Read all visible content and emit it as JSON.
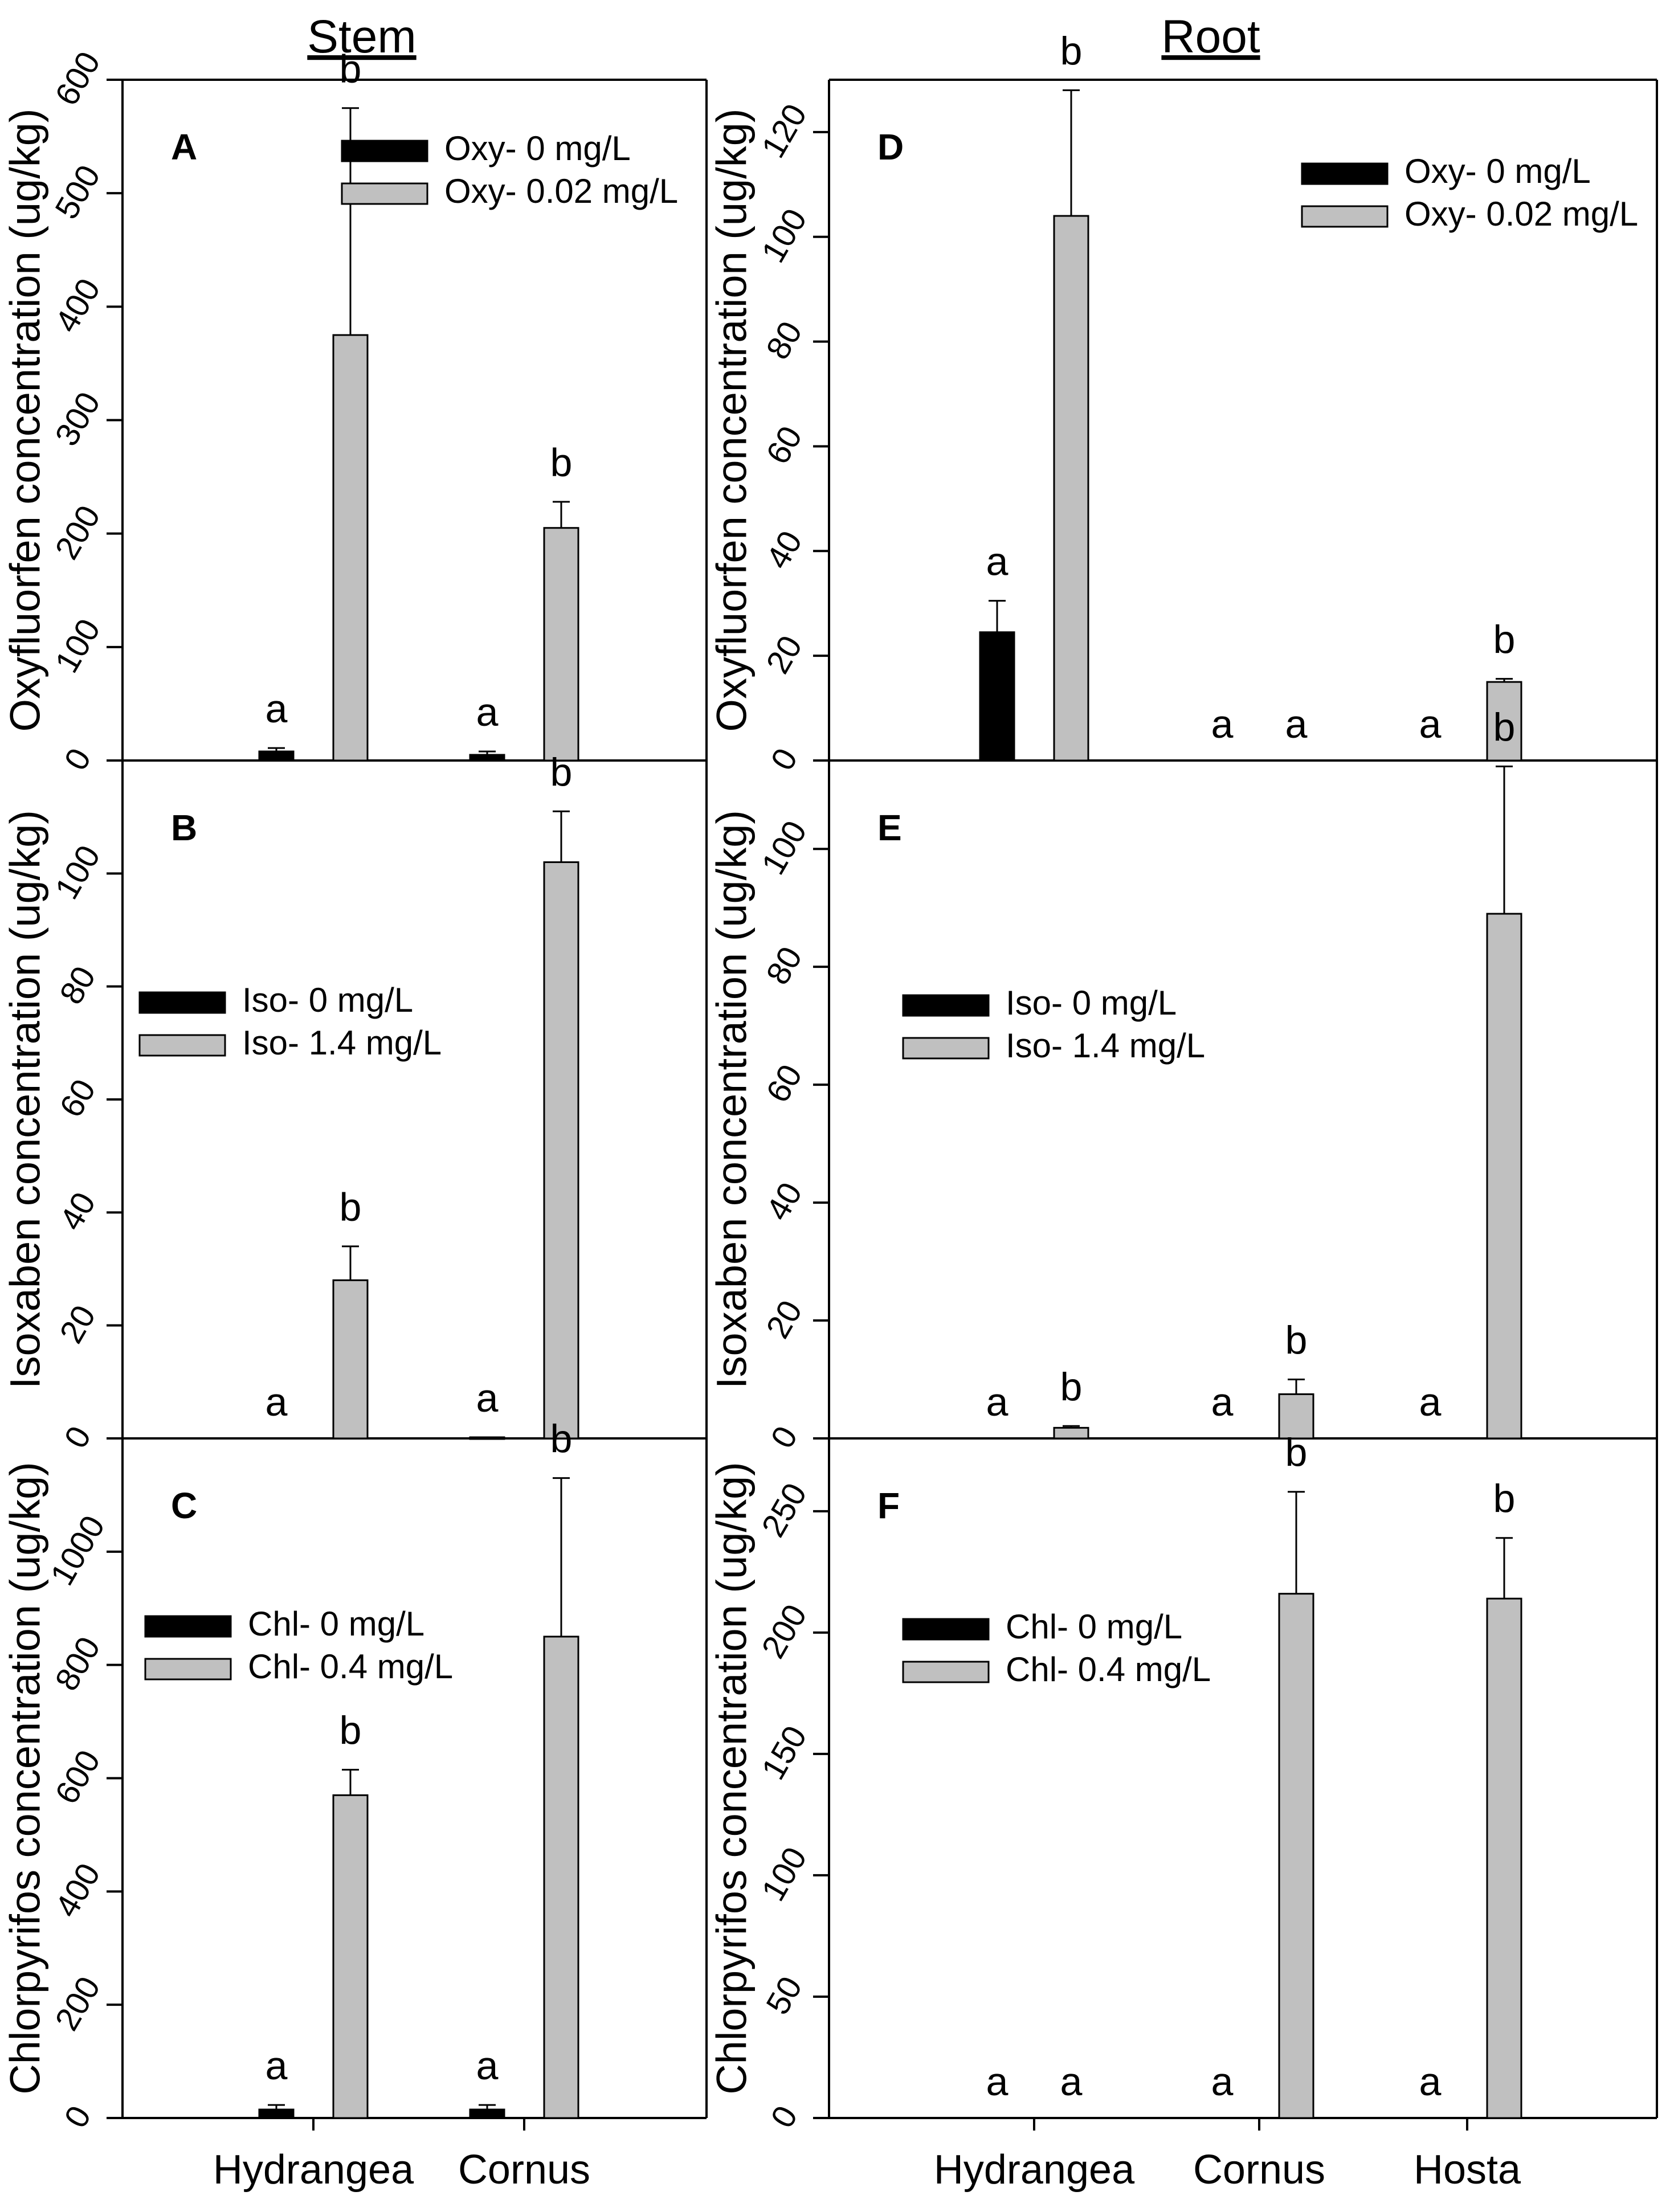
{
  "section_titles": {
    "stem": "Stem",
    "root": "Root"
  },
  "colors": {
    "control_bar": "#000000",
    "treated_bar": "#c0c0c0",
    "axis": "#000000",
    "background": "#ffffff"
  },
  "chart_data": [
    {
      "id": "A",
      "type": "bar",
      "panel_label": "A",
      "column": "stem",
      "ylabel": "Oxyfluorfen concentration (ug/kg)",
      "ylim": [
        0,
        600
      ],
      "yticks": [
        0,
        100,
        200,
        300,
        400,
        500,
        600
      ],
      "categories": [
        "Hydrangea",
        "Cornus"
      ],
      "show_categories": false,
      "frame": "left-top-right",
      "legend_position": "top-right",
      "series": [
        {
          "name": "Oxy- 0 mg/L",
          "color": "#000000",
          "values": [
            8,
            5
          ],
          "errors": [
            3,
            3
          ],
          "letters": [
            "a",
            "a"
          ]
        },
        {
          "name": "Oxy- 0.02 mg/L",
          "color": "#c0c0c0",
          "values": [
            375,
            205
          ],
          "errors": [
            200,
            23
          ],
          "letters": [
            "b",
            "b"
          ]
        }
      ]
    },
    {
      "id": "B",
      "type": "bar",
      "panel_label": "B",
      "column": "stem",
      "ylabel": "Isoxaben concentration (ug/kg)",
      "ylim": [
        0,
        120
      ],
      "yticks": [
        0,
        20,
        40,
        60,
        80,
        100
      ],
      "categories": [
        "Hydrangea",
        "Cornus"
      ],
      "show_categories": false,
      "frame": "left-right",
      "legend_position": "middle-left",
      "series": [
        {
          "name": "Iso- 0 mg/L",
          "color": "#000000",
          "values": [
            0,
            0.2
          ],
          "errors": [
            0,
            0
          ],
          "letters": [
            "a",
            "a"
          ]
        },
        {
          "name": "Iso- 1.4 mg/L",
          "color": "#c0c0c0",
          "values": [
            28,
            102
          ],
          "errors": [
            6,
            9
          ],
          "letters": [
            "b",
            "b"
          ]
        }
      ]
    },
    {
      "id": "C",
      "type": "bar",
      "panel_label": "C",
      "column": "stem",
      "ylabel": "Chlorpyrifos concentration (ug/kg)",
      "ylim": [
        0,
        1200
      ],
      "yticks": [
        0,
        200,
        400,
        600,
        800,
        1000
      ],
      "categories": [
        "Hydrangea",
        "Cornus"
      ],
      "show_categories": true,
      "frame": "left-right-bottom",
      "legend_position": "middle-left",
      "series": [
        {
          "name": "Chl- 0 mg/L",
          "color": "#000000",
          "values": [
            15,
            15
          ],
          "errors": [
            8,
            8
          ],
          "letters": [
            "a",
            "a"
          ]
        },
        {
          "name": "Chl- 0.4 mg/L",
          "color": "#c0c0c0",
          "values": [
            570,
            850
          ],
          "errors": [
            45,
            280
          ],
          "letters": [
            "b",
            "b"
          ]
        }
      ]
    },
    {
      "id": "D",
      "type": "bar",
      "panel_label": "D",
      "column": "root",
      "ylabel": "Oxyfluorfen concentration (ug/kg)",
      "ylim": [
        0,
        130
      ],
      "yticks": [
        0,
        20,
        40,
        60,
        80,
        100,
        120
      ],
      "categories": [
        "Hydrangea",
        "Cornus",
        "Hosta"
      ],
      "show_categories": false,
      "frame": "box",
      "legend_position": "top-right",
      "series": [
        {
          "name": "Oxy- 0 mg/L",
          "color": "#000000",
          "values": [
            24.5,
            0,
            0
          ],
          "errors": [
            6,
            0,
            0
          ],
          "letters": [
            "a",
            "a",
            "a"
          ]
        },
        {
          "name": "Oxy- 0.02 mg/L",
          "color": "#c0c0c0",
          "values": [
            104,
            0,
            15
          ],
          "errors": [
            24,
            0,
            0.6
          ],
          "letters": [
            "b",
            "a",
            "b"
          ]
        }
      ]
    },
    {
      "id": "E",
      "type": "bar",
      "panel_label": "E",
      "column": "root",
      "ylabel": "Isoxaben concentration (ug/kg)",
      "ylim": [
        0,
        115
      ],
      "yticks": [
        0,
        20,
        40,
        60,
        80,
        100
      ],
      "categories": [
        "Hydrangea",
        "Cornus",
        "Hosta"
      ],
      "show_categories": false,
      "frame": "left-right",
      "legend_position": "middle-left",
      "series": [
        {
          "name": "Iso- 0 mg/L",
          "color": "#000000",
          "values": [
            0,
            0,
            0
          ],
          "errors": [
            0,
            0,
            0
          ],
          "letters": [
            "a",
            "a",
            "a"
          ]
        },
        {
          "name": "Iso- 1.4 mg/L",
          "color": "#c0c0c0",
          "values": [
            1.8,
            7.5,
            89
          ],
          "errors": [
            0.3,
            2.5,
            25
          ],
          "letters": [
            "b",
            "b",
            "b"
          ]
        }
      ]
    },
    {
      "id": "F",
      "type": "bar",
      "panel_label": "F",
      "column": "root",
      "ylabel": "Chlorpyrifos concentration (ug/kg)",
      "ylim": [
        0,
        280
      ],
      "yticks": [
        0,
        50,
        100,
        150,
        200,
        250
      ],
      "categories": [
        "Hydrangea",
        "Cornus",
        "Hosta"
      ],
      "show_categories": true,
      "frame": "left-right-bottom",
      "legend_position": "middle-left",
      "series": [
        {
          "name": "Chl- 0 mg/L",
          "color": "#000000",
          "values": [
            0,
            0,
            0
          ],
          "errors": [
            0,
            0,
            0
          ],
          "letters": [
            "a",
            "a",
            "a"
          ]
        },
        {
          "name": "Chl- 0.4 mg/L",
          "color": "#c0c0c0",
          "values": [
            0,
            216,
            214
          ],
          "errors": [
            0,
            42,
            25
          ],
          "letters": [
            "a",
            "b",
            "b"
          ]
        }
      ]
    }
  ]
}
